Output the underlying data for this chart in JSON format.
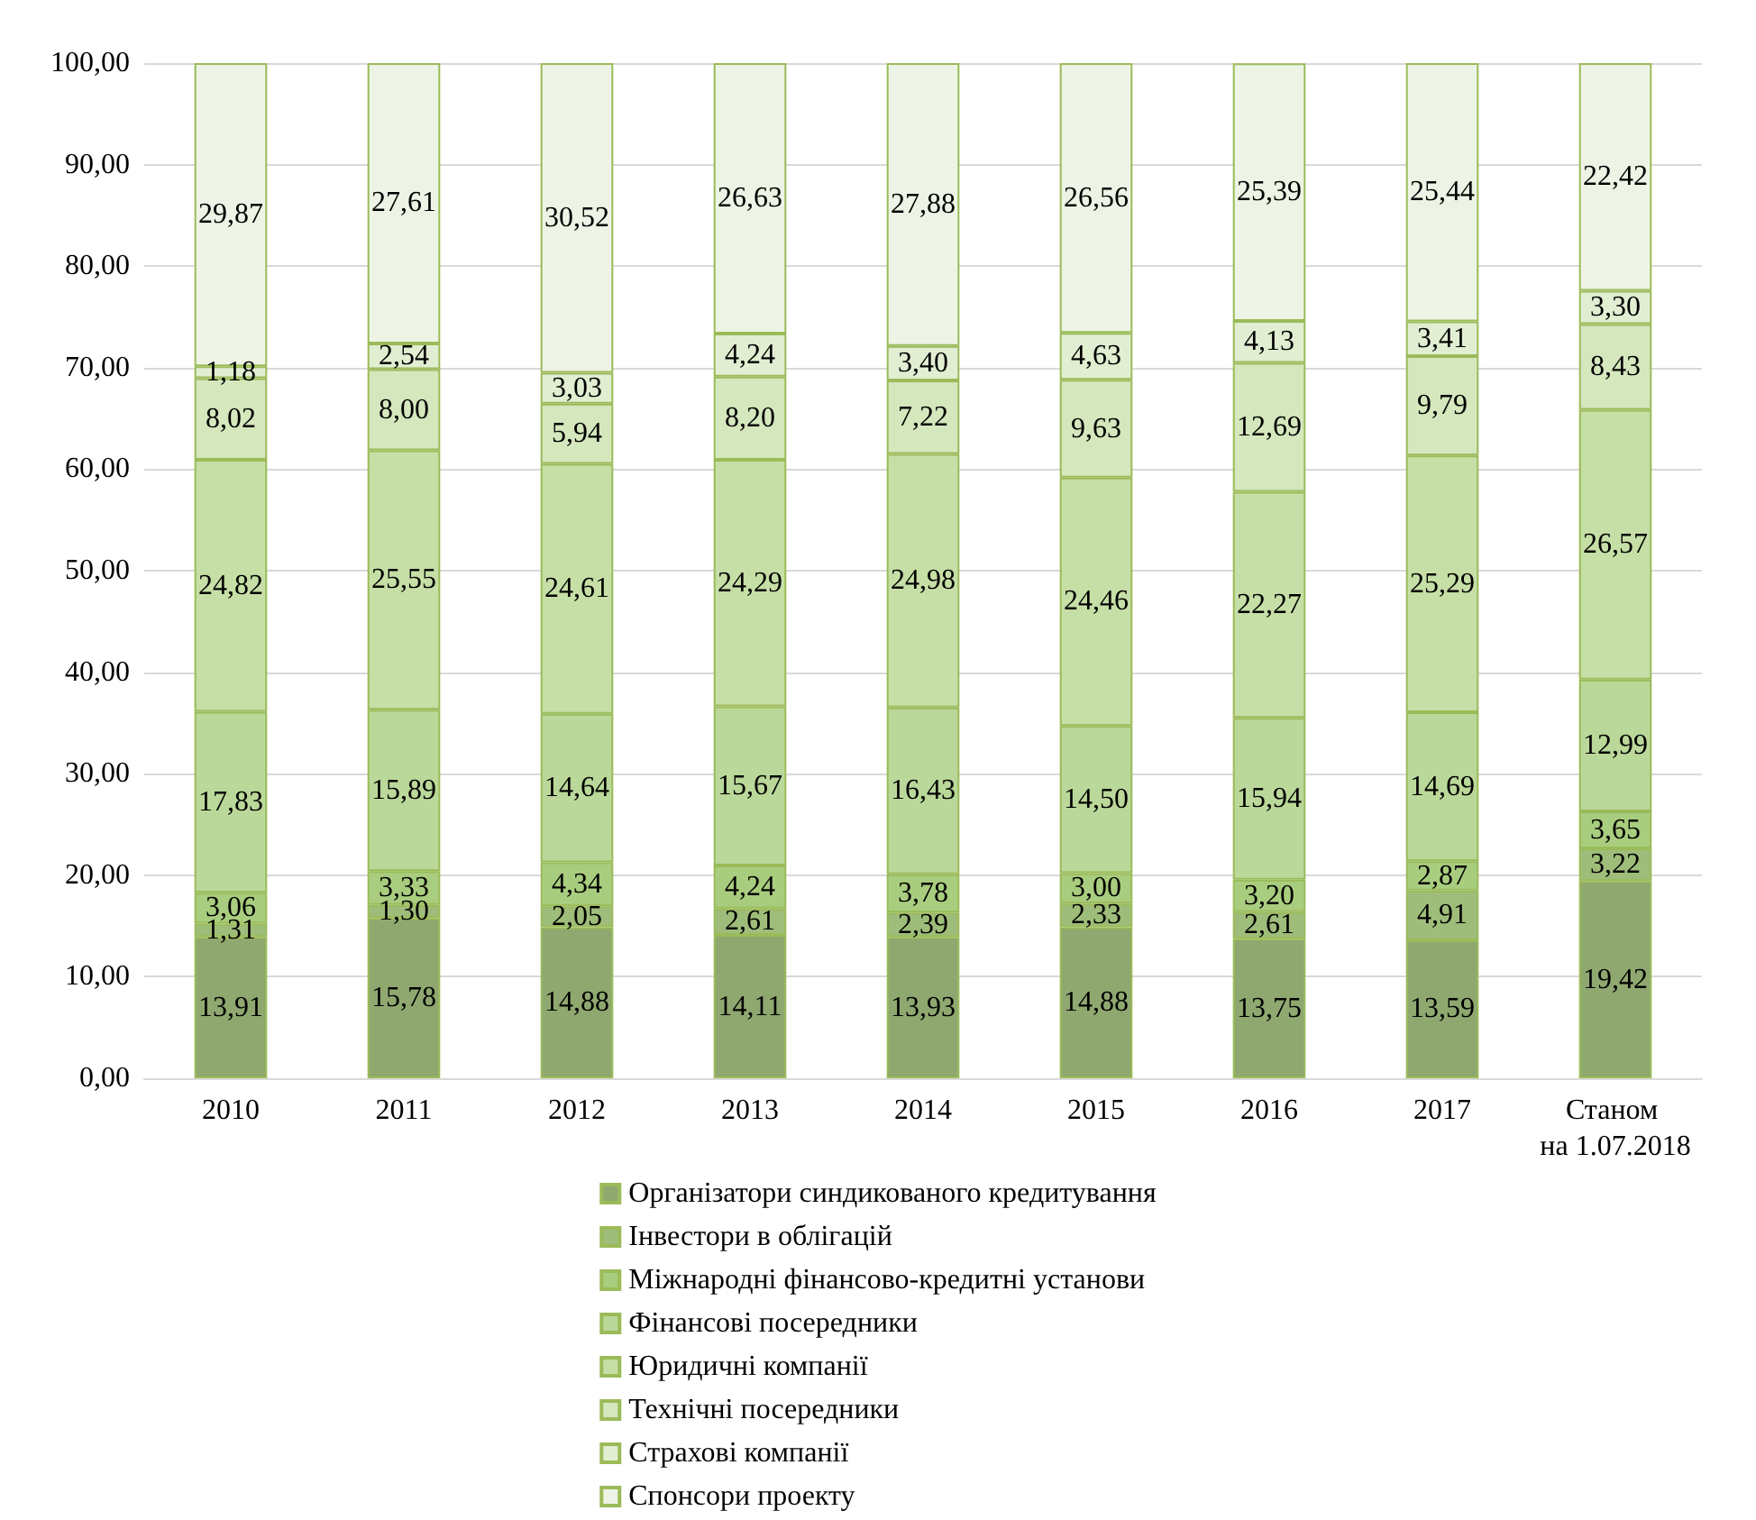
{
  "chart_data": {
    "type": "bar",
    "stacked": true,
    "categories": [
      "2010",
      "2011",
      "2012",
      "2013",
      "2014",
      "2015",
      "2016",
      "2017",
      "Станом на 1.07.2018"
    ],
    "ylim": [
      0,
      100
    ],
    "yticks": [
      {
        "value": 0,
        "label": "0,00"
      },
      {
        "value": 10,
        "label": "10,00"
      },
      {
        "value": 20,
        "label": "20,00"
      },
      {
        "value": 30,
        "label": "30,00"
      },
      {
        "value": 40,
        "label": "40,00"
      },
      {
        "value": 50,
        "label": "50,00"
      },
      {
        "value": 60,
        "label": "60,00"
      },
      {
        "value": 70,
        "label": "70,00"
      },
      {
        "value": 80,
        "label": "80,00"
      },
      {
        "value": 90,
        "label": "90,00"
      },
      {
        "value": 100,
        "label": "100,00"
      }
    ],
    "grid": "y",
    "legend": "bottom",
    "series": [
      {
        "name": "Організатори синдикованого кредитування",
        "color": "#8fa870",
        "values": [
          13.91,
          15.78,
          14.88,
          14.11,
          13.93,
          14.88,
          13.75,
          13.59,
          19.42
        ],
        "value_labels": [
          "13,91",
          "15,78",
          "14,88",
          "14,11",
          "13,93",
          "14,88",
          "13,75",
          "13,59",
          "19,42"
        ]
      },
      {
        "name": "Інвестори в облігацій",
        "color": "#9fbd7a",
        "values": [
          1.31,
          1.3,
          2.05,
          2.61,
          2.39,
          2.33,
          2.61,
          4.91,
          3.22
        ],
        "value_labels": [
          "1,31",
          "1,30",
          "2,05",
          "2,61",
          "2,39",
          "2,33",
          "2,61",
          "4,91",
          "3,22"
        ]
      },
      {
        "name": "Міжнародні фінансово-кредитні установи",
        "color": "#a9cd7e",
        "values": [
          3.06,
          3.33,
          4.34,
          4.24,
          3.78,
          3.0,
          3.2,
          2.87,
          3.65
        ],
        "value_labels": [
          "3,06",
          "3,33",
          "4,34",
          "4,24",
          "3,78",
          "3,00",
          "3,20",
          "2,87",
          "3,65"
        ]
      },
      {
        "name": "Фінансові посередники",
        "color": "#bad899",
        "values": [
          17.83,
          15.89,
          14.64,
          15.67,
          16.43,
          14.5,
          15.94,
          14.69,
          12.99
        ],
        "value_labels": [
          "17,83",
          "15,89",
          "14,64",
          "15,67",
          "16,43",
          "14,50",
          "15,94",
          "14,69",
          "12,99"
        ]
      },
      {
        "name": "Юридичні компанії",
        "color": "#c6dfa6",
        "values": [
          24.82,
          25.55,
          24.61,
          24.29,
          24.98,
          24.46,
          22.27,
          25.29,
          26.57
        ],
        "value_labels": [
          "24,82",
          "25,55",
          "24,61",
          "24,29",
          "24,98",
          "24,46",
          "22,27",
          "25,29",
          "26,57"
        ]
      },
      {
        "name": "Технічні посередники",
        "color": "#d4e7bd",
        "values": [
          8.02,
          8.0,
          5.94,
          8.2,
          7.22,
          9.63,
          12.69,
          9.79,
          8.43
        ],
        "value_labels": [
          "8,02",
          "8,00",
          "5,94",
          "8,20",
          "7,22",
          "9,63",
          "12,69",
          "9,79",
          "8,43"
        ]
      },
      {
        "name": "Страхові компанії",
        "color": "#e1eed2",
        "values": [
          1.18,
          2.54,
          3.03,
          4.24,
          3.4,
          4.63,
          4.13,
          3.41,
          3.3
        ],
        "value_labels": [
          "1,18",
          "2,54",
          "3,03",
          "4,24",
          "3,40",
          "4,63",
          "4,13",
          "3,41",
          "3,30"
        ]
      },
      {
        "name": "Спонсори проекту",
        "color": "#edf4e5",
        "values": [
          29.87,
          27.61,
          30.52,
          26.63,
          27.88,
          26.56,
          25.39,
          25.44,
          22.42
        ],
        "value_labels": [
          "29,87",
          "27,61",
          "30,52",
          "26,63",
          "27,88",
          "26,56",
          "25,39",
          "25,44",
          "22,42"
        ]
      }
    ]
  }
}
